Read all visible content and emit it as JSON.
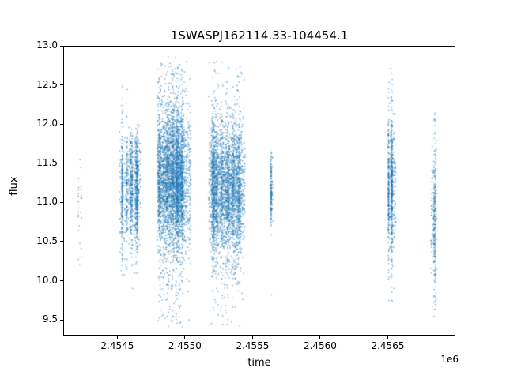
{
  "chart_data": {
    "type": "scatter",
    "title": "1SWASPJ162114.33-104454.1",
    "xlabel": "time",
    "ylabel": "flux",
    "x_offset_label": "1e6",
    "grid": false,
    "legend": null,
    "marker_color_rgba": "rgba(31,119,180,0.55)",
    "marker_size_px": 1.5,
    "xlim": [
      2454100,
      2457000
    ],
    "ylim": [
      9.3,
      13.0
    ],
    "xticks": [
      2454500,
      2455000,
      2455500,
      2456000,
      2456500
    ],
    "xtick_labels": [
      "2.4545",
      "2.4550",
      "2.4555",
      "2.4560",
      "2.4565"
    ],
    "yticks": [
      9.5,
      10.0,
      10.5,
      11.0,
      11.5,
      12.0,
      12.5,
      13.0
    ],
    "ytick_labels": [
      "9.5",
      "10.0",
      "10.5",
      "11.0",
      "11.5",
      "12.0",
      "12.5",
      "13.0"
    ],
    "description": "SuperWASP light curve: dense vertical clusters of flux measurements grouped in observing seasons",
    "clusters": [
      {
        "t_center": 2454220,
        "t_halfwidth": 16,
        "n": 28,
        "flux_center": 10.95,
        "flux_sigma": 0.45,
        "tail_fraction": 0.1,
        "tail_sigma": 0.6,
        "flux_min": 10.15,
        "flux_max": 11.65
      },
      {
        "t_center": 2454545,
        "t_halfwidth": 30,
        "n": 420,
        "flux_center": 11.15,
        "flux_sigma": 0.38,
        "tail_fraction": 0.14,
        "tail_sigma": 0.7,
        "flux_min": 9.85,
        "flux_max": 12.6
      },
      {
        "t_center": 2454625,
        "t_halfwidth": 48,
        "n": 900,
        "flux_center": 11.2,
        "flux_sigma": 0.36,
        "tail_fraction": 0.1,
        "tail_sigma": 0.55,
        "flux_min": 9.9,
        "flux_max": 12.0
      },
      {
        "t_center": 2454920,
        "t_halfwidth": 125,
        "n": 4200,
        "flux_center": 11.3,
        "flux_sigma": 0.42,
        "tail_fraction": 0.18,
        "tail_sigma": 0.75,
        "flux_min": 9.4,
        "flux_max": 12.88
      },
      {
        "t_center": 2455310,
        "t_halfwidth": 135,
        "n": 3400,
        "flux_center": 11.15,
        "flux_sigma": 0.4,
        "tail_fraction": 0.16,
        "tail_sigma": 0.75,
        "flux_min": 9.4,
        "flux_max": 12.8
      },
      {
        "t_center": 2455640,
        "t_halfwidth": 10,
        "n": 170,
        "flux_center": 11.15,
        "flux_sigma": 0.22,
        "tail_fraction": 0.05,
        "tail_sigma": 0.4,
        "flux_min": 10.55,
        "flux_max": 11.65
      },
      {
        "t_center": 2456530,
        "t_halfwidth": 30,
        "n": 800,
        "flux_center": 11.2,
        "flux_sigma": 0.4,
        "tail_fraction": 0.16,
        "tail_sigma": 0.75,
        "flux_min": 9.7,
        "flux_max": 12.8
      },
      {
        "t_center": 2456840,
        "t_halfwidth": 22,
        "n": 300,
        "flux_center": 10.85,
        "flux_sigma": 0.5,
        "tail_fraction": 0.15,
        "tail_sigma": 0.8,
        "flux_min": 9.4,
        "flux_max": 12.5
      }
    ],
    "outlier_points": [
      {
        "t": 2455640,
        "flux": 9.82
      }
    ]
  }
}
